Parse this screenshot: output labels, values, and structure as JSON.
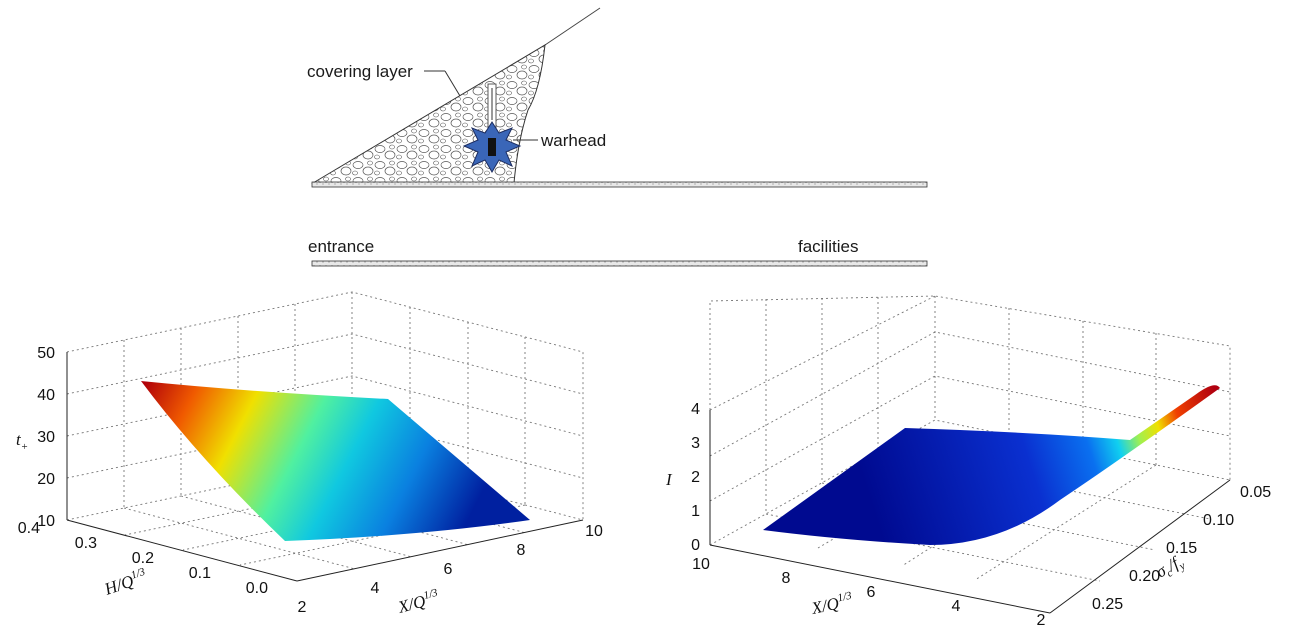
{
  "schematic": {
    "covering_layer_label": "covering layer",
    "warhead_label": "warhead",
    "entrance_label": "entrance",
    "facilities_label": "facilities"
  },
  "chart_data": [
    {
      "type": "surface",
      "zlabel": "t₊",
      "xlabel": "X/Q^(1/3)",
      "ylabel": "H/Q^(1/3)",
      "xticks": [
        "2",
        "4",
        "6",
        "8",
        "10"
      ],
      "yticks": [
        "0.0",
        "0.1",
        "0.2",
        "0.3",
        "0.4"
      ],
      "zticks": [
        "10",
        "20",
        "30",
        "40",
        "50"
      ],
      "xlim": [
        2,
        10
      ],
      "ylim": [
        0.0,
        0.4
      ],
      "zlim": [
        10,
        50
      ],
      "corners": {
        "x2_h0.4": 43,
        "x2_h0.0": 29,
        "x10_h0.0": 13,
        "x10_h0.4": 27
      },
      "colormap": "jet",
      "grid": true
    },
    {
      "type": "surface",
      "zlabel": "I",
      "xlabel": "X/Q^(1/3)",
      "ylabel": "σc/fy",
      "xticks": [
        "10",
        "8",
        "6",
        "4",
        "2"
      ],
      "yticks": [
        "0.05",
        "0.10",
        "0.15",
        "0.20",
        "0.25"
      ],
      "zticks": [
        "0",
        "1",
        "2",
        "3",
        "4"
      ],
      "xlim": [
        2,
        10
      ],
      "ylim": [
        0.05,
        0.25
      ],
      "zlim": [
        0,
        4
      ],
      "peak": {
        "x": 2,
        "y": 0.05,
        "z": 4
      },
      "colormap": "jet",
      "grid": true
    }
  ]
}
